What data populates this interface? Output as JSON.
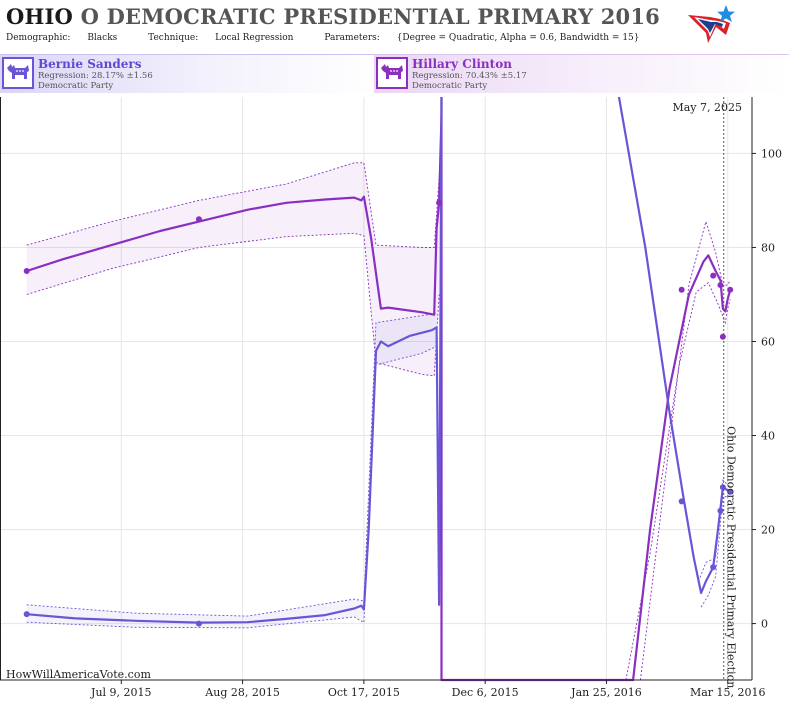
{
  "header": {
    "title_state": "OHIO",
    "title_rest": "O DEMOCRATIC PRESIDENTIAL PRIMARY 2016",
    "demographic_label": "Demographic:",
    "demographic_value": "Blacks",
    "technique_label": "Technique:",
    "technique_value": "Local Regression",
    "parameters_label": "Parameters:",
    "parameters_value": "{Degree = Quadratic, Alpha = 0.6, Bandwidth = 15}"
  },
  "candidates": [
    {
      "name": "Bernie Sanders",
      "regression": "Regression: 28.17% ±1.56",
      "party": "Democratic Party",
      "color": "#6a55d6"
    },
    {
      "name": "Hillary Clinton",
      "regression": "Regression: 70.43% ±5.17",
      "party": "Democratic Party",
      "color": "#8a2fc0"
    }
  ],
  "watermark": "HowWillAmericaVote.com",
  "date_label": "May 7, 2025",
  "election_label": "Ohio Democratic Presidential Primary Election",
  "chart_data": {
    "type": "line",
    "x_range": [
      "2015-05-20",
      "2016-03-25"
    ],
    "y_range": [
      -12,
      112
    ],
    "y_ticks": [
      0,
      20,
      40,
      60,
      80,
      100
    ],
    "x_tick_labels": [
      {
        "date": "2015-07-09",
        "label": "Jul 9, 2015"
      },
      {
        "date": "2015-08-28",
        "label": "Aug 28, 2015"
      },
      {
        "date": "2015-10-17",
        "label": "Oct 17, 2015"
      },
      {
        "date": "2015-12-06",
        "label": "Dec 6, 2015"
      },
      {
        "date": "2016-01-25",
        "label": "Jan 25, 2016"
      },
      {
        "date": "2016-03-15",
        "label": "Mar 15, 2016"
      }
    ],
    "election_date": "2016-03-15",
    "grid": true,
    "series": [
      {
        "name": "Hillary Clinton",
        "color": "#8a2fc0",
        "line": [
          [
            "2015-05-31",
            75
          ],
          [
            "2015-06-15",
            77.5
          ],
          [
            "2015-07-05",
            80.5
          ],
          [
            "2015-07-25",
            83.5
          ],
          [
            "2015-08-10",
            85.5
          ],
          [
            "2015-08-30",
            88
          ],
          [
            "2015-09-15",
            89.5
          ],
          [
            "2015-10-01",
            90.2
          ],
          [
            "2015-10-13",
            90.6
          ],
          [
            "2015-10-16",
            90
          ],
          [
            "2015-10-17",
            90.8
          ],
          [
            "2015-10-20",
            82
          ],
          [
            "2015-10-24",
            67
          ],
          [
            "2015-10-27",
            67.2
          ],
          [
            "2015-11-10",
            66.2
          ],
          [
            "2015-11-15",
            65.7
          ],
          [
            "2015-11-16",
            84
          ],
          [
            "2015-11-17",
            89.5
          ],
          [
            "2015-11-18",
            108
          ],
          [
            "2015-11-18",
            120
          ],
          [
            "2015-11-18",
            -12
          ],
          [
            "2016-02-05",
            -12
          ],
          [
            "2016-02-12",
            20
          ],
          [
            "2016-02-20",
            50
          ],
          [
            "2016-02-28",
            70
          ],
          [
            "2016-03-05",
            77
          ],
          [
            "2016-03-07",
            78.3
          ],
          [
            "2016-03-10",
            75
          ],
          [
            "2016-03-12",
            73
          ],
          [
            "2016-03-13",
            67
          ],
          [
            "2016-03-14",
            66.4
          ],
          [
            "2016-03-15",
            69
          ],
          [
            "2016-03-16",
            71
          ]
        ],
        "band_upper": [
          [
            "2015-05-31",
            80.5
          ],
          [
            "2015-07-05",
            85.5
          ],
          [
            "2015-08-10",
            90
          ],
          [
            "2015-09-15",
            93.5
          ],
          [
            "2015-10-13",
            98
          ],
          [
            "2015-10-17",
            98
          ],
          [
            "2015-10-22",
            80.5
          ],
          [
            "2015-11-10",
            80
          ],
          [
            "2015-11-15",
            80
          ],
          [
            "2015-11-18",
            102
          ]
        ],
        "band_lower": [
          [
            "2015-05-31",
            70
          ],
          [
            "2015-07-05",
            75.5
          ],
          [
            "2015-08-10",
            80
          ],
          [
            "2015-09-15",
            82.3
          ],
          [
            "2015-10-13",
            83
          ],
          [
            "2015-10-17",
            82.5
          ],
          [
            "2015-10-22",
            55.5
          ],
          [
            "2015-11-10",
            53
          ],
          [
            "2015-11-15",
            52.7
          ],
          [
            "2015-11-17",
            70
          ]
        ],
        "dashed_upper": [
          [
            "2016-02-08",
            -12
          ],
          [
            "2016-02-18",
            30
          ],
          [
            "2016-02-28",
            72
          ],
          [
            "2016-03-06",
            85.5
          ],
          [
            "2016-03-10",
            79
          ],
          [
            "2016-03-13",
            72
          ],
          [
            "2016-03-15",
            72
          ],
          [
            "2016-03-16",
            73
          ]
        ],
        "dashed_lower": [
          [
            "2016-02-02",
            -12
          ],
          [
            "2016-02-12",
            15
          ],
          [
            "2016-02-24",
            55
          ],
          [
            "2016-03-02",
            70.5
          ],
          [
            "2016-03-07",
            72.5
          ],
          [
            "2016-03-11",
            68
          ],
          [
            "2016-03-14",
            64
          ],
          [
            "2016-03-15",
            67
          ],
          [
            "2016-03-16",
            69
          ]
        ],
        "points": [
          [
            "2015-05-31",
            75
          ],
          [
            "2015-08-10",
            86
          ],
          [
            "2015-11-17",
            89.5
          ],
          [
            "2016-02-25",
            71
          ],
          [
            "2016-03-09",
            74
          ],
          [
            "2016-03-12",
            72
          ],
          [
            "2016-03-13",
            61
          ],
          [
            "2016-03-16",
            71
          ]
        ]
      },
      {
        "name": "Bernie Sanders",
        "color": "#6a55d6",
        "line": [
          [
            "2015-05-31",
            2
          ],
          [
            "2015-06-20",
            1.1
          ],
          [
            "2015-07-15",
            0.6
          ],
          [
            "2015-08-10",
            0.2
          ],
          [
            "2015-08-30",
            0.3
          ],
          [
            "2015-09-15",
            1
          ],
          [
            "2015-10-01",
            1.8
          ],
          [
            "2015-10-13",
            3.2
          ],
          [
            "2015-10-16",
            3.8
          ],
          [
            "2015-10-17",
            3
          ],
          [
            "2015-10-19",
            20
          ],
          [
            "2015-10-22",
            58
          ],
          [
            "2015-10-24",
            60
          ],
          [
            "2015-10-27",
            59
          ],
          [
            "2015-11-05",
            61.2
          ],
          [
            "2015-11-14",
            62.4
          ],
          [
            "2015-11-16",
            63
          ],
          [
            "2015-11-17",
            4
          ],
          [
            "2015-11-18",
            120
          ],
          [
            "2016-01-30",
            120
          ],
          [
            "2016-02-10",
            80
          ],
          [
            "2016-02-20",
            45
          ],
          [
            "2016-02-26",
            26
          ],
          [
            "2016-03-01",
            14
          ],
          [
            "2016-03-04",
            6.5
          ],
          [
            "2016-03-06",
            9
          ],
          [
            "2016-03-09",
            12
          ],
          [
            "2016-03-11",
            20
          ],
          [
            "2016-03-13",
            29
          ],
          [
            "2016-03-16",
            28
          ]
        ],
        "band_upper": [
          [
            "2015-05-31",
            4
          ],
          [
            "2015-07-15",
            2.2
          ],
          [
            "2015-08-30",
            1.6
          ],
          [
            "2015-10-13",
            5.2
          ],
          [
            "2015-10-17",
            4.8
          ],
          [
            "2015-10-22",
            64
          ],
          [
            "2015-11-10",
            65.5
          ],
          [
            "2015-11-16",
            66
          ]
        ],
        "band_lower": [
          [
            "2015-05-31",
            0.3
          ],
          [
            "2015-07-15",
            -0.8
          ],
          [
            "2015-08-30",
            -0.9
          ],
          [
            "2015-10-13",
            1.4
          ],
          [
            "2015-10-17",
            0.2
          ],
          [
            "2015-10-22",
            55
          ],
          [
            "2015-11-10",
            57.5
          ],
          [
            "2015-11-16",
            59
          ]
        ],
        "dashed_upper": [
          [
            "2016-03-03",
            9
          ],
          [
            "2016-03-06",
            13
          ],
          [
            "2016-03-10",
            14
          ],
          [
            "2016-03-13",
            30.5
          ],
          [
            "2016-03-16",
            29
          ]
        ],
        "dashed_lower": [
          [
            "2016-03-04",
            3.5
          ],
          [
            "2016-03-07",
            6
          ],
          [
            "2016-03-10",
            10
          ],
          [
            "2016-03-13",
            27
          ],
          [
            "2016-03-16",
            27
          ]
        ],
        "points": [
          [
            "2015-05-31",
            2
          ],
          [
            "2015-08-10",
            0
          ],
          [
            "2016-02-25",
            26
          ],
          [
            "2016-03-09",
            12
          ],
          [
            "2016-03-12",
            24
          ],
          [
            "2016-03-13",
            29
          ],
          [
            "2016-03-16",
            28
          ]
        ]
      }
    ]
  }
}
